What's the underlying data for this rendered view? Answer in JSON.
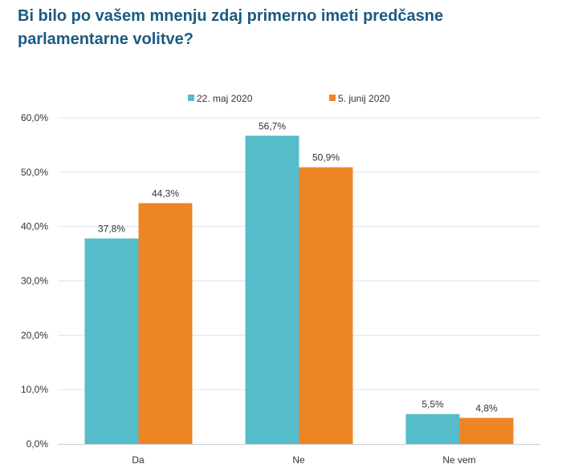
{
  "title": "Bi bilo po vašem mnenju zdaj primerno imeti predčasne parlamentarne volitve?",
  "chart_data": {
    "type": "bar",
    "title": "Bi bilo po vašem mnenju zdaj primerno imeti predčasne parlamentarne volitve?",
    "categories": [
      "Da",
      "Ne",
      "Ne vem"
    ],
    "series": [
      {
        "name": "22. maj 2020",
        "values": [
          37.8,
          56.7,
          5.5
        ],
        "labels": [
          "37,8%",
          "56,7%",
          "5,5%"
        ],
        "color": "#55bcc9"
      },
      {
        "name": "5. junij 2020",
        "values": [
          44.3,
          50.9,
          4.8
        ],
        "labels": [
          "44,3%",
          "50,9%",
          "4,8%"
        ],
        "color": "#ee8524"
      }
    ],
    "y_ticks": [
      0,
      10,
      20,
      30,
      40,
      50,
      60
    ],
    "y_tick_labels": [
      "0,0%",
      "10,0%",
      "20,0%",
      "30,0%",
      "40,0%",
      "50,0%",
      "60,0%"
    ],
    "ylim": [
      0,
      60
    ],
    "grid": true,
    "legend": "top-center",
    "xlabel": "",
    "ylabel": "",
    "gridline_color": "#d6e6ee",
    "axis_color": "#c4cfd5"
  }
}
